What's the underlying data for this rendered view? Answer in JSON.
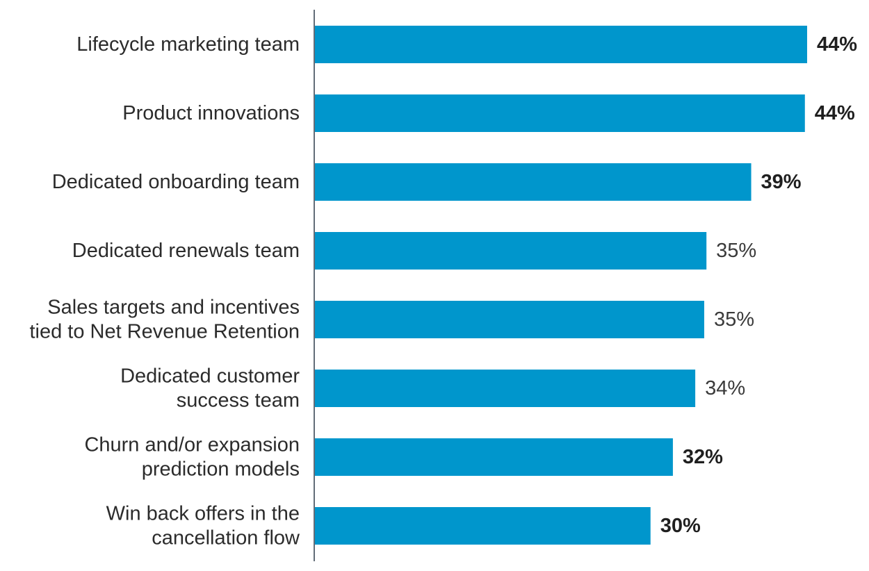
{
  "chart_data": {
    "type": "bar",
    "orientation": "horizontal",
    "title": "",
    "xlabel": "",
    "ylabel": "",
    "grid": false,
    "xlim": [
      0,
      44
    ],
    "bar_color": "#0096cc",
    "axis_color": "#2f3b4a",
    "categories": [
      {
        "label": [
          "Lifecycle marketing team"
        ],
        "value": 44,
        "display": "44%",
        "bold": true
      },
      {
        "label": [
          "Product innovations"
        ],
        "value": 43.8,
        "display": "44%",
        "bold": true
      },
      {
        "label": [
          "Dedicated onboarding team"
        ],
        "value": 39,
        "display": "39%",
        "bold": true
      },
      {
        "label": [
          "Dedicated renewals team"
        ],
        "value": 35,
        "display": "35%",
        "bold": false
      },
      {
        "label": [
          "Sales targets and incentives",
          "tied to Net Revenue Retention"
        ],
        "value": 34.8,
        "display": "35%",
        "bold": false
      },
      {
        "label": [
          "Dedicated customer",
          "success team"
        ],
        "value": 34,
        "display": "34%",
        "bold": false
      },
      {
        "label": [
          "Churn and/or expansion",
          "prediction models"
        ],
        "value": 32,
        "display": "32%",
        "bold": true
      },
      {
        "label": [
          "Win back offers in the",
          "cancellation flow"
        ],
        "value": 30,
        "display": "30%",
        "bold": true
      }
    ]
  }
}
